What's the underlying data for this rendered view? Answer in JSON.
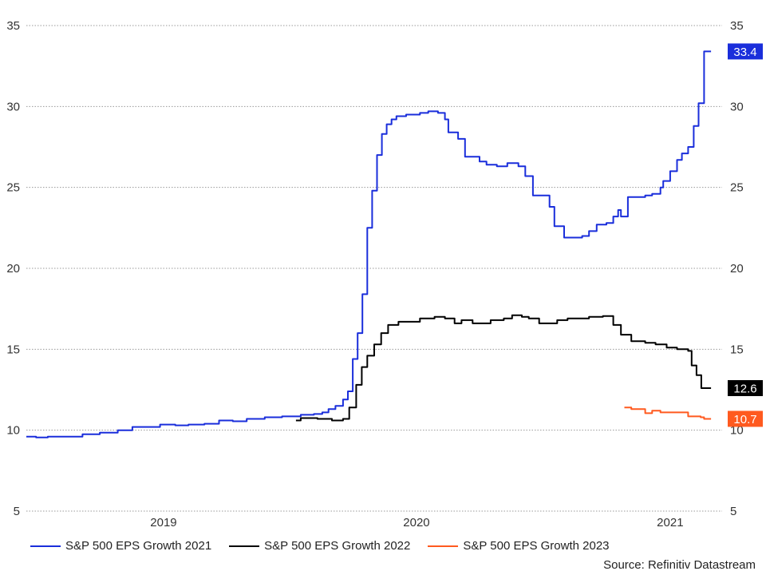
{
  "chart_data": {
    "type": "line",
    "title": "",
    "xlabel": "",
    "ylabel": "",
    "x_range": [
      "2018-07-01",
      "2021-03-31"
    ],
    "ylim": [
      5,
      35
    ],
    "y_ticks": [
      5,
      10,
      15,
      20,
      25,
      30,
      35
    ],
    "x_ticks": [
      {
        "label": "2019",
        "date": "2019-01-15"
      },
      {
        "label": "2020",
        "date": "2020-01-15"
      },
      {
        "label": "2021",
        "date": "2021-01-15"
      }
    ],
    "grid": true,
    "legend_position": "bottom",
    "series": [
      {
        "name": "S&P 500 EPS Growth 2021",
        "color": "#1a2edb",
        "end_label": "33.4",
        "points": [
          [
            "2018-07-01",
            9.6
          ],
          [
            "2018-07-15",
            9.55
          ],
          [
            "2018-08-01",
            9.6
          ],
          [
            "2018-09-01",
            9.6
          ],
          [
            "2018-09-20",
            9.75
          ],
          [
            "2018-10-15",
            9.85
          ],
          [
            "2018-11-10",
            10.0
          ],
          [
            "2018-12-01",
            10.2
          ],
          [
            "2018-12-20",
            10.2
          ],
          [
            "2019-01-10",
            10.35
          ],
          [
            "2019-02-01",
            10.3
          ],
          [
            "2019-02-20",
            10.35
          ],
          [
            "2019-03-15",
            10.4
          ],
          [
            "2019-04-05",
            10.6
          ],
          [
            "2019-04-25",
            10.55
          ],
          [
            "2019-05-15",
            10.7
          ],
          [
            "2019-06-10",
            10.8
          ],
          [
            "2019-07-05",
            10.85
          ],
          [
            "2019-08-01",
            10.95
          ],
          [
            "2019-08-20",
            11.0
          ],
          [
            "2019-09-01",
            11.1
          ],
          [
            "2019-09-10",
            11.3
          ],
          [
            "2019-09-20",
            11.5
          ],
          [
            "2019-10-01",
            11.9
          ],
          [
            "2019-10-08",
            12.4
          ],
          [
            "2019-10-15",
            14.4
          ],
          [
            "2019-10-22",
            16.0
          ],
          [
            "2019-10-29",
            18.4
          ],
          [
            "2019-11-05",
            22.5
          ],
          [
            "2019-11-12",
            24.8
          ],
          [
            "2019-11-19",
            27.0
          ],
          [
            "2019-11-26",
            28.3
          ],
          [
            "2019-12-03",
            28.9
          ],
          [
            "2019-12-10",
            29.2
          ],
          [
            "2019-12-17",
            29.4
          ],
          [
            "2019-12-31",
            29.5
          ],
          [
            "2020-01-20",
            29.6
          ],
          [
            "2020-02-01",
            29.7
          ],
          [
            "2020-02-15",
            29.6
          ],
          [
            "2020-02-25",
            29.2
          ],
          [
            "2020-03-01",
            28.4
          ],
          [
            "2020-03-15",
            28.0
          ],
          [
            "2020-03-25",
            26.9
          ],
          [
            "2020-04-15",
            26.6
          ],
          [
            "2020-04-25",
            26.4
          ],
          [
            "2020-05-10",
            26.3
          ],
          [
            "2020-05-25",
            26.5
          ],
          [
            "2020-06-10",
            26.3
          ],
          [
            "2020-06-20",
            25.7
          ],
          [
            "2020-07-01",
            24.5
          ],
          [
            "2020-07-15",
            24.5
          ],
          [
            "2020-07-25",
            23.8
          ],
          [
            "2020-08-01",
            22.6
          ],
          [
            "2020-08-15",
            21.9
          ],
          [
            "2020-09-10",
            22.0
          ],
          [
            "2020-09-20",
            22.3
          ],
          [
            "2020-10-01",
            22.7
          ],
          [
            "2020-10-15",
            22.8
          ],
          [
            "2020-10-25",
            23.2
          ],
          [
            "2020-11-01",
            23.6
          ],
          [
            "2020-11-05",
            23.2
          ],
          [
            "2020-11-15",
            24.4
          ],
          [
            "2020-12-10",
            24.5
          ],
          [
            "2020-12-20",
            24.6
          ],
          [
            "2021-01-01",
            25.0
          ],
          [
            "2021-01-05",
            25.4
          ],
          [
            "2021-01-15",
            26.0
          ],
          [
            "2021-01-25",
            26.7
          ],
          [
            "2021-02-01",
            27.1
          ],
          [
            "2021-02-10",
            27.5
          ],
          [
            "2021-02-18",
            28.8
          ],
          [
            "2021-02-25",
            30.2
          ],
          [
            "2021-03-05",
            33.4
          ],
          [
            "2021-03-15",
            33.4
          ]
        ]
      },
      {
        "name": "S&P 500 EPS Growth 2022",
        "color": "#000000",
        "end_label": "12.6",
        "points": [
          [
            "2019-07-25",
            10.6
          ],
          [
            "2019-08-01",
            10.75
          ],
          [
            "2019-08-25",
            10.7
          ],
          [
            "2019-09-15",
            10.6
          ],
          [
            "2019-10-01",
            10.7
          ],
          [
            "2019-10-10",
            11.4
          ],
          [
            "2019-10-20",
            12.8
          ],
          [
            "2019-10-28",
            13.9
          ],
          [
            "2019-11-05",
            14.6
          ],
          [
            "2019-11-15",
            15.3
          ],
          [
            "2019-11-25",
            16.0
          ],
          [
            "2019-12-05",
            16.5
          ],
          [
            "2019-12-20",
            16.7
          ],
          [
            "2020-01-20",
            16.9
          ],
          [
            "2020-02-10",
            17.0
          ],
          [
            "2020-02-25",
            16.9
          ],
          [
            "2020-03-10",
            16.6
          ],
          [
            "2020-03-20",
            16.8
          ],
          [
            "2020-04-05",
            16.6
          ],
          [
            "2020-05-01",
            16.8
          ],
          [
            "2020-05-20",
            16.9
          ],
          [
            "2020-06-01",
            17.1
          ],
          [
            "2020-06-15",
            17.0
          ],
          [
            "2020-06-25",
            16.9
          ],
          [
            "2020-07-10",
            16.6
          ],
          [
            "2020-08-05",
            16.8
          ],
          [
            "2020-08-20",
            16.9
          ],
          [
            "2020-09-20",
            17.0
          ],
          [
            "2020-10-10",
            17.05
          ],
          [
            "2020-10-25",
            16.5
          ],
          [
            "2020-11-05",
            15.9
          ],
          [
            "2020-11-20",
            15.5
          ],
          [
            "2020-12-10",
            15.4
          ],
          [
            "2020-12-25",
            15.3
          ],
          [
            "2021-01-10",
            15.1
          ],
          [
            "2021-01-25",
            15.0
          ],
          [
            "2021-02-10",
            14.9
          ],
          [
            "2021-02-15",
            14.0
          ],
          [
            "2021-02-22",
            13.4
          ],
          [
            "2021-03-01",
            12.6
          ],
          [
            "2021-03-15",
            12.6
          ]
        ]
      },
      {
        "name": "S&P 500 EPS Growth 2023",
        "color": "#ff5a1f",
        "end_label": "10.7",
        "points": [
          [
            "2020-11-10",
            11.4
          ],
          [
            "2020-11-20",
            11.3
          ],
          [
            "2020-12-05",
            11.3
          ],
          [
            "2020-12-10",
            11.05
          ],
          [
            "2020-12-20",
            11.2
          ],
          [
            "2021-01-01",
            11.1
          ],
          [
            "2021-01-15",
            11.1
          ],
          [
            "2021-02-01",
            11.1
          ],
          [
            "2021-02-10",
            10.85
          ],
          [
            "2021-02-28",
            10.8
          ],
          [
            "2021-03-05",
            10.7
          ],
          [
            "2021-03-15",
            10.7
          ]
        ]
      }
    ]
  },
  "source": "Source: Refinitiv Datastream"
}
